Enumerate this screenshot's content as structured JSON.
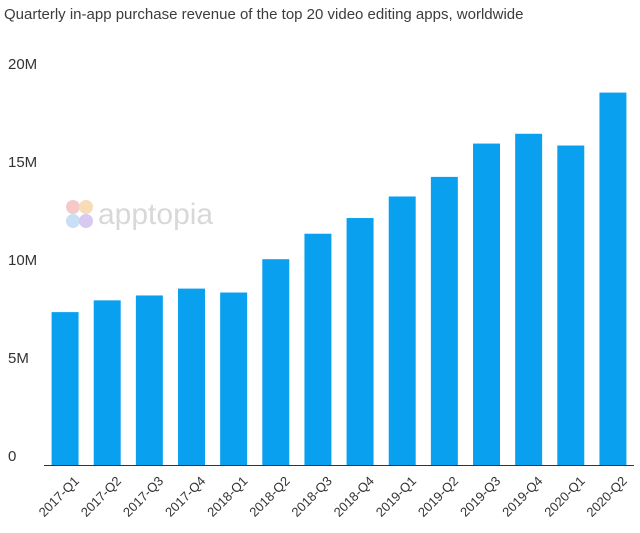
{
  "chart_data": {
    "type": "bar",
    "title": "Quarterly in-app purchase revenue of the top 20 video editing apps, worldwide",
    "xlabel": "",
    "ylabel": "",
    "categories": [
      "2017-Q1",
      "2017-Q2",
      "2017-Q3",
      "2017-Q4",
      "2018-Q1",
      "2018-Q2",
      "2018-Q3",
      "2018-Q4",
      "2019-Q1",
      "2019-Q2",
      "2019-Q3",
      "2019-Q4",
      "2020-Q1",
      "2020-Q2"
    ],
    "values": [
      7.8,
      8.4,
      8.65,
      9.0,
      8.8,
      10.5,
      11.8,
      12.6,
      13.7,
      14.7,
      16.4,
      16.9,
      16.3,
      19.0
    ],
    "ylim": [
      0,
      20
    ],
    "yticks": [
      0,
      5,
      10,
      15,
      20
    ],
    "ytick_labels": [
      "0",
      "5M",
      "10M",
      "15M",
      "20M"
    ],
    "bar_color": "#0aa0f0",
    "grid": false,
    "legend": "none"
  },
  "watermark": {
    "text": "apptopia",
    "icon": "apptopia-logo-icon"
  }
}
